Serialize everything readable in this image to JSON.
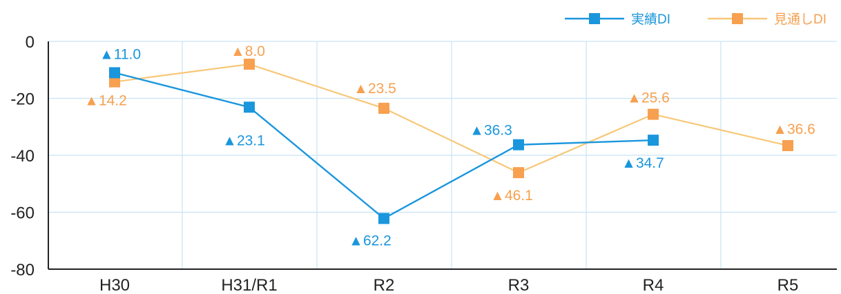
{
  "chart_data": {
    "type": "line",
    "categories": [
      "H30",
      "H31/R1",
      "R2",
      "R3",
      "R4",
      "R5"
    ],
    "ylim": [
      -80,
      0
    ],
    "yticks": [
      0,
      -20,
      -40,
      -60,
      -80
    ],
    "ytick_labels": [
      "0",
      "-20",
      "-40",
      "-60",
      "-80"
    ],
    "grid": true,
    "legend_position": "top-right",
    "series": [
      {
        "name": "実績DI",
        "color": "#1a96dc",
        "values": [
          -11.0,
          -23.1,
          -62.2,
          -36.3,
          -34.7,
          null
        ],
        "labels": [
          "▲11.0",
          "▲23.1",
          "▲62.2",
          "▲36.3",
          "▲34.7",
          ""
        ]
      },
      {
        "name": "見通しDI",
        "color": "#f7a04f",
        "line_color": "#f8c777",
        "values": [
          -14.2,
          -8.0,
          -23.5,
          -46.1,
          -25.6,
          -36.6
        ],
        "labels": [
          "▲14.2",
          "▲8.0",
          "▲23.5",
          "▲46.1",
          "▲25.6",
          "▲36.6"
        ]
      }
    ]
  }
}
